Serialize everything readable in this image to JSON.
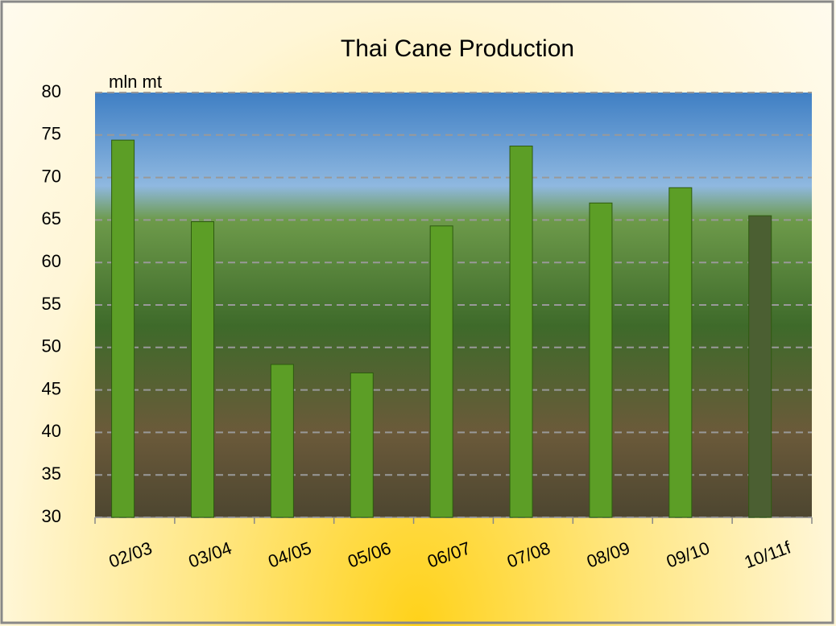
{
  "chart_data": {
    "type": "bar",
    "title": "Thai Cane Production",
    "y_label": "mln mt",
    "categories": [
      "02/03",
      "03/04",
      "04/05",
      "05/06",
      "06/07",
      "07/08",
      "08/09",
      "09/10",
      "10/11f"
    ],
    "values": [
      74.4,
      64.8,
      48.0,
      47.0,
      64.3,
      73.7,
      67.0,
      68.8,
      65.5
    ],
    "colors": [
      "#5c9e26",
      "#5c9e26",
      "#5c9e26",
      "#5c9e26",
      "#5c9e26",
      "#5c9e26",
      "#5c9e26",
      "#5c9e26",
      "#4b5f32"
    ],
    "ylim": [
      30,
      80
    ],
    "yticks": [
      30,
      35,
      40,
      45,
      50,
      55,
      60,
      65,
      70,
      75,
      80
    ],
    "grid": true
  }
}
